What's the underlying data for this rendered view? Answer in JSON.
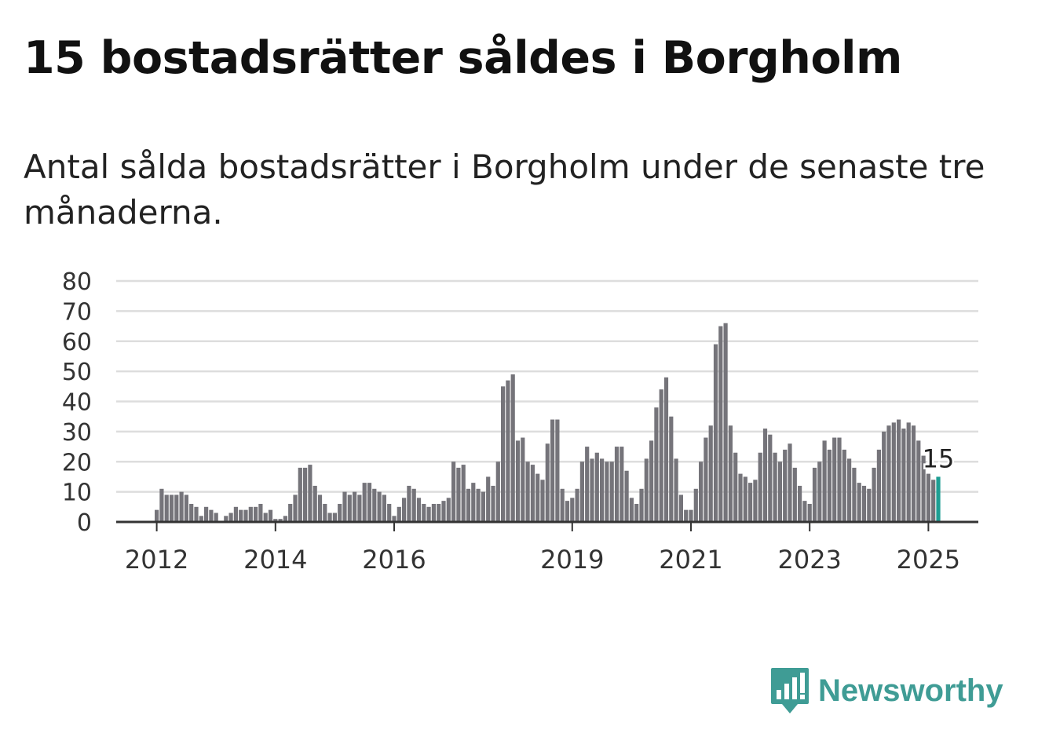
{
  "title": "15 bostadsrätter såldes i Borgholm",
  "subtitle": "Antal sålda bostadsrätter i Borgholm under de senaste tre månaderna.",
  "brand": {
    "name": "Newsworthy",
    "icon": "newsworthy-bar-chart-icon",
    "color": "#3f9c95"
  },
  "chart_data": {
    "type": "bar",
    "title": "",
    "xlabel": "",
    "ylabel": "",
    "ylim": [
      0,
      80
    ],
    "yticks": [
      0,
      10,
      20,
      30,
      40,
      50,
      60,
      70,
      80
    ],
    "x_tick_labels": [
      "2012",
      "2014",
      "2016",
      "2019",
      "2021",
      "2023",
      "2025"
    ],
    "grid": true,
    "bar_color": "#75747a",
    "highlight_color": "#1e9e93",
    "last_value_label": "15",
    "series": [
      {
        "values": [
          4,
          11,
          9,
          9,
          9,
          10,
          9,
          6,
          5,
          2,
          5,
          4,
          3,
          0,
          2,
          3,
          5,
          4,
          4,
          5,
          5,
          6,
          3,
          4,
          1,
          1,
          2,
          6,
          9,
          18,
          18,
          19,
          12,
          9,
          6,
          3,
          3,
          6,
          10,
          9,
          10,
          9,
          13,
          13,
          11,
          10,
          9,
          6,
          2,
          5,
          8,
          12,
          11,
          8,
          6,
          5,
          6,
          6,
          7,
          8,
          20,
          18,
          19,
          11,
          13,
          11,
          10,
          15,
          12,
          20,
          45,
          47,
          49,
          27,
          28,
          20,
          19,
          16,
          14,
          26,
          34,
          34,
          11,
          7,
          8,
          11,
          20,
          25,
          21,
          23,
          21,
          20,
          20,
          25,
          25,
          17,
          8,
          6,
          11,
          21,
          27,
          38,
          44,
          48,
          35,
          21,
          9,
          4,
          4,
          11,
          20,
          28,
          32,
          59,
          65,
          66,
          32,
          23,
          16,
          15,
          13,
          14,
          23,
          31,
          29,
          23,
          20,
          24,
          26,
          18,
          12,
          7,
          6,
          18,
          20,
          27,
          24,
          28,
          28,
          24,
          21,
          18,
          13,
          12,
          11,
          18,
          24,
          30,
          32,
          33,
          34,
          31,
          33,
          32,
          27,
          22,
          16,
          14,
          15
        ]
      }
    ]
  }
}
